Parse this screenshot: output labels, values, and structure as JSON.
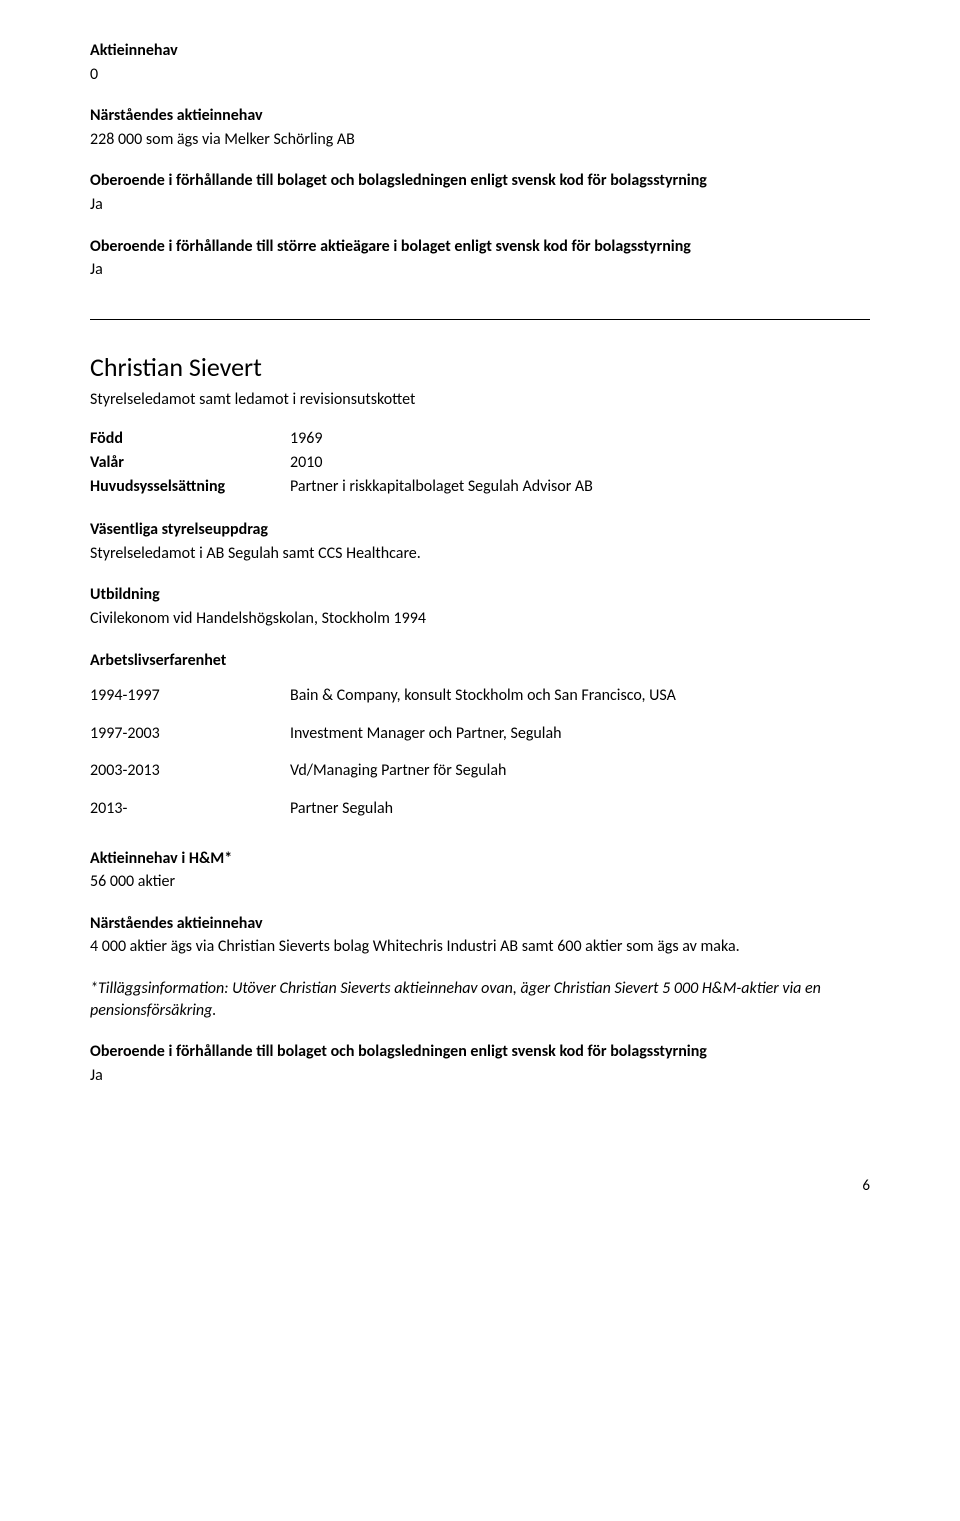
{
  "top": {
    "aktieinnehav_label": "Aktieinnehav",
    "aktieinnehav_value": "0",
    "narstaende_label": "Närståendes aktieinnehav",
    "narstaende_value": "228 000 som ägs via Melker Schörling AB",
    "oberoende1_label": "Oberoende i förhållande till bolaget och bolagsledningen enligt svensk kod för bolagsstyrning",
    "oberoende1_value": "Ja",
    "oberoende2_label": "Oberoende i förhållande till större aktieägare i bolaget enligt svensk kod för bolagsstyrning",
    "oberoende2_value": "Ja"
  },
  "person": {
    "name": "Christian Sievert",
    "role": "Styrelseledamot samt ledamot i revisionsutskottet",
    "fields": {
      "fodd_label": "Född",
      "fodd_value": "1969",
      "valar_label": "Valår",
      "valar_value": "2010",
      "huvud_label": "Huvudsysselsättning",
      "huvud_value": "Partner i riskkapitalbolaget Segulah Advisor AB"
    },
    "vasentliga_label": "Väsentliga styrelseuppdrag",
    "vasentliga_text": "Styrelseledamot i AB Segulah samt CCS Healthcare.",
    "utbildning_label": "Utbildning",
    "utbildning_text": "Civilekonom vid Handelshögskolan, Stockholm 1994",
    "arbetsliv_label": "Arbetslivserfarenhet",
    "experience": [
      {
        "years": "1994-1997",
        "desc": "Bain & Company, konsult Stockholm och San Francisco, USA"
      },
      {
        "years": "1997-2003",
        "desc": "Investment Manager och Partner, Segulah"
      },
      {
        "years": "2003-2013",
        "desc": "Vd/Managing Partner för Segulah"
      },
      {
        "years": "2013-",
        "desc": "Partner Segulah"
      }
    ],
    "aktie_hm_label": "Aktieinnehav i H&M*",
    "aktie_hm_value": "56 000 aktier",
    "narstaende_label": "Närståendes aktieinnehav",
    "narstaende_text": "4 000 aktier ägs via Christian Sieverts bolag Whitechris Industri AB samt 600 aktier som ägs av maka.",
    "tillaggs_text": "*Tilläggsinformation: Utöver Christian Sieverts aktieinnehav ovan, äger Christian Sievert 5 000 H&M-aktier via en pensionsförsäkring.",
    "oberoende_label": "Oberoende i förhållande till bolaget och bolagsledningen enligt svensk kod för bolagsstyrning",
    "oberoende_value": "Ja"
  },
  "page_number": "6"
}
